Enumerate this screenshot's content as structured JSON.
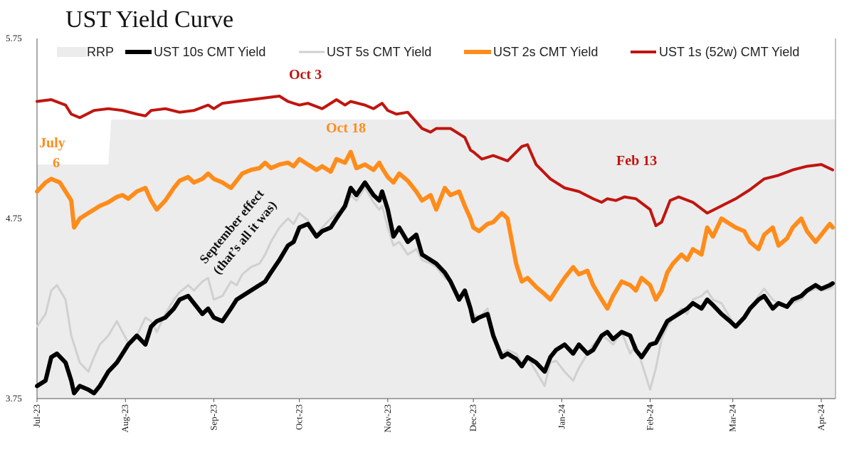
{
  "chart_data": {
    "type": "line",
    "title": "UST Yield Curve",
    "ylim": [
      3.75,
      5.75
    ],
    "yticks": [
      "5.75",
      "4.75",
      "3.75"
    ],
    "x_ticks": [
      "Jul-23",
      "Aug-23",
      "Sep-23",
      "Oct-23",
      "Nov-23",
      "Dec-23",
      "Jan-24",
      "Feb-24",
      "Mar-24",
      "Apr-24"
    ],
    "x_tick_days": [
      0,
      31,
      62,
      92,
      123,
      153,
      184,
      215,
      244,
      275
    ],
    "x_range_days": [
      0,
      280
    ],
    "grid": false,
    "legend_position": "top",
    "legend": {
      "rrp": "RRP",
      "t10": "UST 10s CMT Yield",
      "t5": "UST 5s CMT Yield",
      "t2": "UST 2s CMT Yield",
      "t1": "UST 1s (52w) CMT Yield"
    },
    "colors": {
      "rrp": "#ececec",
      "t10": "#000000",
      "t5": "#d0d0d0",
      "t2": "#ff8c1a",
      "t1": "#c0150f"
    },
    "rrp": {
      "x": [
        0,
        25,
        26,
        280
      ],
      "y": [
        5.05,
        5.05,
        5.3,
        5.3
      ]
    },
    "series": [
      {
        "key": "t1",
        "x": [
          0,
          5,
          10,
          12,
          15,
          20,
          25,
          30,
          35,
          38,
          40,
          45,
          50,
          55,
          60,
          62,
          65,
          70,
          75,
          80,
          85,
          88,
          90,
          92,
          95,
          100,
          105,
          108,
          110,
          115,
          118,
          121,
          123,
          126,
          130,
          135,
          138,
          140,
          145,
          150,
          152,
          153,
          156,
          160,
          165,
          170,
          172,
          175,
          180,
          185,
          190,
          195,
          198,
          200,
          203,
          206,
          210,
          215,
          217,
          219,
          222,
          225,
          230,
          235,
          240,
          245,
          250,
          255,
          260,
          265,
          270,
          275,
          279
        ],
        "y": [
          5.4,
          5.41,
          5.38,
          5.33,
          5.31,
          5.35,
          5.36,
          5.35,
          5.33,
          5.32,
          5.35,
          5.36,
          5.34,
          5.35,
          5.38,
          5.36,
          5.39,
          5.4,
          5.41,
          5.42,
          5.43,
          5.4,
          5.39,
          5.38,
          5.39,
          5.36,
          5.41,
          5.38,
          5.4,
          5.38,
          5.36,
          5.39,
          5.35,
          5.33,
          5.34,
          5.25,
          5.23,
          5.25,
          5.25,
          5.2,
          5.13,
          5.12,
          5.08,
          5.1,
          5.07,
          5.15,
          5.16,
          5.05,
          4.97,
          4.92,
          4.9,
          4.86,
          4.84,
          4.86,
          4.85,
          4.87,
          4.86,
          4.8,
          4.71,
          4.73,
          4.85,
          4.87,
          4.84,
          4.78,
          4.82,
          4.86,
          4.91,
          4.97,
          4.99,
          5.02,
          5.04,
          5.05,
          5.02
        ]
      },
      {
        "key": "t2",
        "x": [
          0,
          3,
          5,
          8,
          10,
          12,
          13,
          15,
          18,
          20,
          22,
          25,
          28,
          30,
          32,
          35,
          38,
          40,
          42,
          45,
          48,
          50,
          53,
          55,
          58,
          60,
          62,
          65,
          68,
          70,
          72,
          75,
          78,
          80,
          82,
          85,
          88,
          90,
          92,
          95,
          98,
          100,
          103,
          105,
          108,
          110,
          112,
          115,
          118,
          120,
          121,
          123,
          125,
          127,
          130,
          133,
          135,
          138,
          140,
          143,
          145,
          148,
          150,
          152,
          153,
          155,
          158,
          160,
          163,
          165,
          168,
          170,
          172,
          175,
          178,
          180,
          182,
          185,
          188,
          190,
          193,
          195,
          198,
          200,
          202,
          205,
          208,
          210,
          212,
          215,
          217,
          219,
          221,
          223,
          226,
          228,
          230,
          233,
          235,
          237,
          240,
          243,
          245,
          248,
          250,
          253,
          255,
          258,
          260,
          263,
          265,
          268,
          270,
          273,
          275,
          278,
          279
        ],
        "y": [
          4.9,
          4.95,
          4.97,
          4.95,
          4.9,
          4.85,
          4.7,
          4.75,
          4.78,
          4.8,
          4.82,
          4.84,
          4.87,
          4.88,
          4.86,
          4.9,
          4.92,
          4.85,
          4.8,
          4.85,
          4.92,
          4.96,
          4.98,
          4.95,
          4.97,
          5.0,
          4.97,
          4.95,
          4.92,
          4.96,
          5.0,
          5.02,
          5.03,
          5.06,
          5.03,
          5.05,
          5.06,
          5.04,
          5.08,
          5.05,
          5.02,
          5.04,
          5.01,
          5.08,
          5.06,
          5.12,
          5.03,
          5.05,
          5.02,
          5.06,
          5.03,
          4.98,
          4.95,
          5.0,
          4.96,
          4.9,
          4.85,
          4.88,
          4.8,
          4.92,
          4.88,
          4.9,
          4.82,
          4.75,
          4.7,
          4.68,
          4.72,
          4.73,
          4.78,
          4.75,
          4.5,
          4.4,
          4.42,
          4.37,
          4.33,
          4.3,
          4.35,
          4.42,
          4.48,
          4.44,
          4.46,
          4.38,
          4.3,
          4.25,
          4.32,
          4.4,
          4.38,
          4.35,
          4.42,
          4.38,
          4.3,
          4.35,
          4.45,
          4.5,
          4.55,
          4.52,
          4.58,
          4.55,
          4.7,
          4.65,
          4.75,
          4.72,
          4.7,
          4.68,
          4.62,
          4.58,
          4.66,
          4.7,
          4.6,
          4.64,
          4.7,
          4.75,
          4.68,
          4.62,
          4.66,
          4.72,
          4.7
        ]
      },
      {
        "key": "t5",
        "x": [
          0,
          3,
          5,
          7,
          10,
          12,
          13,
          15,
          18,
          20,
          22,
          25,
          28,
          30,
          32,
          35,
          38,
          40,
          42,
          45,
          48,
          50,
          53,
          55,
          58,
          60,
          62,
          65,
          68,
          70,
          72,
          75,
          78,
          80,
          82,
          85,
          88,
          90,
          92,
          95,
          98,
          100,
          103,
          105,
          108,
          110,
          112,
          115,
          118,
          120,
          121,
          123,
          125,
          127,
          130,
          133,
          135,
          138,
          140,
          143,
          145,
          148,
          150,
          152,
          153,
          155,
          158,
          160,
          163,
          165,
          168,
          170,
          172,
          175,
          178,
          180,
          182,
          185,
          188,
          190,
          193,
          195,
          198,
          200,
          202,
          205,
          208,
          210,
          212,
          215,
          217,
          219,
          221,
          223,
          226,
          228,
          230,
          233,
          235,
          237,
          240,
          243,
          245,
          248,
          250,
          253,
          255,
          258,
          260,
          263,
          265,
          268,
          270,
          273,
          275,
          278,
          279
        ],
        "y": [
          4.15,
          4.22,
          4.35,
          4.38,
          4.3,
          4.1,
          4.05,
          3.95,
          3.9,
          3.98,
          4.05,
          4.1,
          4.18,
          4.12,
          4.06,
          4.1,
          4.2,
          4.18,
          4.12,
          4.22,
          4.3,
          4.34,
          4.38,
          4.35,
          4.4,
          4.42,
          4.3,
          4.32,
          4.4,
          4.38,
          4.44,
          4.48,
          4.5,
          4.55,
          4.62,
          4.7,
          4.75,
          4.72,
          4.78,
          4.74,
          4.66,
          4.7,
          4.75,
          4.78,
          4.8,
          4.88,
          4.85,
          4.92,
          4.84,
          4.8,
          4.82,
          4.7,
          4.6,
          4.62,
          4.55,
          4.58,
          4.52,
          4.5,
          4.48,
          4.42,
          4.4,
          4.3,
          4.35,
          4.25,
          4.22,
          4.2,
          4.25,
          4.1,
          4.0,
          4.02,
          4.0,
          3.95,
          3.98,
          3.9,
          3.82,
          3.95,
          3.96,
          3.9,
          3.85,
          3.92,
          4.0,
          4.05,
          4.1,
          4.08,
          4.05,
          4.12,
          4.0,
          4.05,
          3.95,
          3.8,
          3.92,
          4.08,
          4.15,
          4.2,
          4.25,
          4.22,
          4.3,
          4.32,
          4.35,
          4.3,
          4.28,
          4.2,
          4.15,
          4.2,
          4.25,
          4.32,
          4.36,
          4.3,
          4.28,
          4.26,
          4.28,
          4.3,
          4.34,
          4.36,
          4.35,
          4.36,
          4.37
        ]
      },
      {
        "key": "t10",
        "x": [
          0,
          3,
          5,
          7,
          10,
          12,
          13,
          15,
          18,
          20,
          22,
          25,
          28,
          30,
          32,
          35,
          38,
          40,
          42,
          45,
          48,
          50,
          53,
          55,
          58,
          60,
          62,
          65,
          68,
          70,
          72,
          75,
          78,
          80,
          82,
          85,
          88,
          90,
          92,
          95,
          98,
          100,
          103,
          105,
          108,
          110,
          112,
          115,
          118,
          120,
          121,
          123,
          125,
          127,
          130,
          133,
          135,
          138,
          140,
          143,
          145,
          148,
          150,
          152,
          153,
          155,
          158,
          160,
          163,
          165,
          168,
          170,
          172,
          175,
          178,
          180,
          182,
          185,
          188,
          190,
          193,
          195,
          198,
          200,
          202,
          205,
          208,
          210,
          212,
          215,
          217,
          219,
          221,
          223,
          226,
          228,
          230,
          233,
          235,
          237,
          240,
          243,
          245,
          248,
          250,
          253,
          255,
          258,
          260,
          263,
          265,
          268,
          270,
          273,
          275,
          278,
          279
        ],
        "y": [
          3.82,
          3.85,
          3.98,
          4.0,
          3.95,
          3.85,
          3.78,
          3.82,
          3.8,
          3.78,
          3.82,
          3.9,
          3.95,
          4.0,
          4.05,
          4.1,
          4.05,
          4.15,
          4.18,
          4.2,
          4.25,
          4.3,
          4.32,
          4.28,
          4.22,
          4.25,
          4.2,
          4.18,
          4.25,
          4.3,
          4.32,
          4.35,
          4.38,
          4.4,
          4.45,
          4.52,
          4.6,
          4.62,
          4.7,
          4.72,
          4.65,
          4.68,
          4.7,
          4.75,
          4.82,
          4.92,
          4.88,
          4.95,
          4.88,
          4.85,
          4.9,
          4.8,
          4.65,
          4.7,
          4.62,
          4.66,
          4.55,
          4.52,
          4.5,
          4.45,
          4.4,
          4.3,
          4.35,
          4.25,
          4.18,
          4.2,
          4.22,
          4.1,
          3.98,
          4.0,
          3.97,
          3.93,
          3.98,
          3.95,
          3.9,
          3.98,
          4.02,
          4.05,
          4.0,
          4.05,
          4.0,
          4.02,
          4.1,
          4.12,
          4.08,
          4.12,
          4.1,
          4.02,
          3.98,
          4.05,
          4.06,
          4.12,
          4.18,
          4.2,
          4.23,
          4.25,
          4.28,
          4.25,
          4.3,
          4.27,
          4.22,
          4.18,
          4.15,
          4.2,
          4.25,
          4.3,
          4.32,
          4.25,
          4.28,
          4.26,
          4.3,
          4.32,
          4.35,
          4.38,
          4.36,
          4.38,
          4.39
        ]
      }
    ],
    "annotations": {
      "july": "July",
      "july_day": "6",
      "oct3": "Oct 3",
      "oct18": "Oct 18",
      "feb13": "Feb 13",
      "sep_line1": "September effect",
      "sep_line2": "(that’s all it was)"
    }
  }
}
